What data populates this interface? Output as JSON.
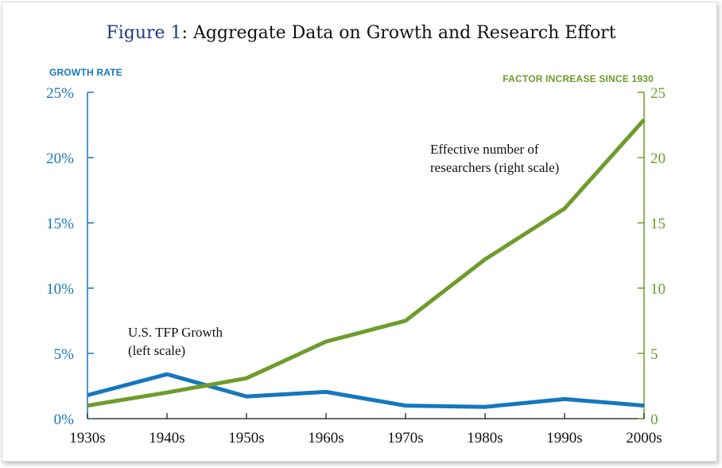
{
  "title_prefix": "Figure 1",
  "title_rest": ": Aggregate Data on Growth and Research Effort",
  "colors": {
    "blue": "#1577bd",
    "green": "#6e9c2c",
    "text": "#111111",
    "title_accent": "#1f3b82"
  },
  "chart_data": {
    "type": "line",
    "title": "Figure 1: Aggregate Data on Growth and Research Effort",
    "categories": [
      "1930s",
      "1940s",
      "1950s",
      "1960s",
      "1970s",
      "1980s",
      "1990s",
      "2000s"
    ],
    "left_axis": {
      "label": "GROWTH RATE",
      "range": [
        0,
        25
      ],
      "ticks": [
        0,
        5,
        10,
        15,
        20,
        25
      ],
      "tick_labels": [
        "0%",
        "5%",
        "10%",
        "15%",
        "20%",
        "25%"
      ]
    },
    "right_axis": {
      "label": "FACTOR INCREASE SINCE 1930",
      "range": [
        0,
        25
      ],
      "ticks": [
        0,
        5,
        10,
        15,
        20,
        25
      ],
      "tick_labels": [
        "0",
        "5",
        "10",
        "15",
        "20",
        "25"
      ]
    },
    "series": [
      {
        "name": "U.S. TFP Growth",
        "axis": "left",
        "color": "#1577bd",
        "values": [
          1.8,
          3.4,
          1.7,
          2.05,
          1.0,
          0.9,
          1.5,
          1.0
        ]
      },
      {
        "name": "Effective number of researchers",
        "axis": "right",
        "color": "#6e9c2c",
        "values": [
          1.0,
          2.0,
          3.1,
          5.9,
          7.5,
          12.2,
          16.1,
          22.9
        ]
      }
    ],
    "annotations": [
      {
        "lines": [
          "U.S. TFP Growth",
          "(left scale)"
        ]
      },
      {
        "lines": [
          "Effective number of",
          "researchers (right scale)"
        ]
      }
    ],
    "grid": false
  }
}
